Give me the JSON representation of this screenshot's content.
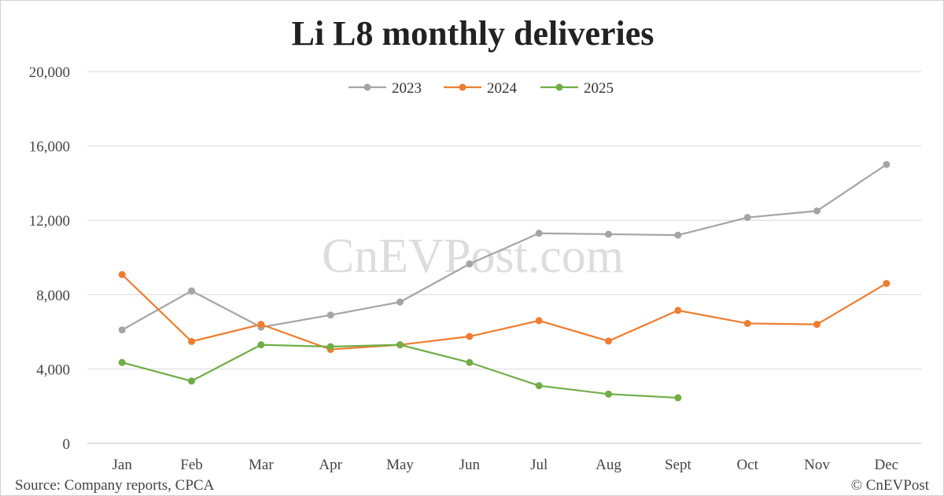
{
  "chart_data": {
    "type": "line",
    "title": "Li L8 monthly deliveries",
    "categories": [
      "Jan",
      "Feb",
      "Mar",
      "Apr",
      "May",
      "Jun",
      "Jul",
      "Aug",
      "Sept",
      "Oct",
      "Nov",
      "Dec"
    ],
    "series": [
      {
        "name": "2023",
        "color": "#a5a5a5",
        "values": [
          6100,
          8200,
          6250,
          6900,
          7600,
          9650,
          11300,
          11250,
          11200,
          12150,
          12500,
          15000
        ]
      },
      {
        "name": "2024",
        "color": "#ed7d31",
        "values": [
          9080,
          5480,
          6400,
          5050,
          5300,
          5750,
          6600,
          5500,
          7150,
          6450,
          6400,
          8600
        ]
      },
      {
        "name": "2025",
        "color": "#70ad47",
        "values": [
          4350,
          3350,
          5300,
          5200,
          5300,
          4350,
          3100,
          2650,
          2450,
          null,
          null,
          null
        ]
      }
    ],
    "ylim": [
      0,
      20000
    ],
    "yticks": [
      "0",
      "4,000",
      "8,000",
      "12,000",
      "16,000",
      "20,000"
    ],
    "ytick_values": [
      0,
      4000,
      8000,
      12000,
      16000,
      20000
    ],
    "grid": true,
    "legend": "top-center"
  },
  "watermark": "CnEVPost.com",
  "source": "Source: Company reports, CPCA",
  "copyright": "© CnEVPost"
}
